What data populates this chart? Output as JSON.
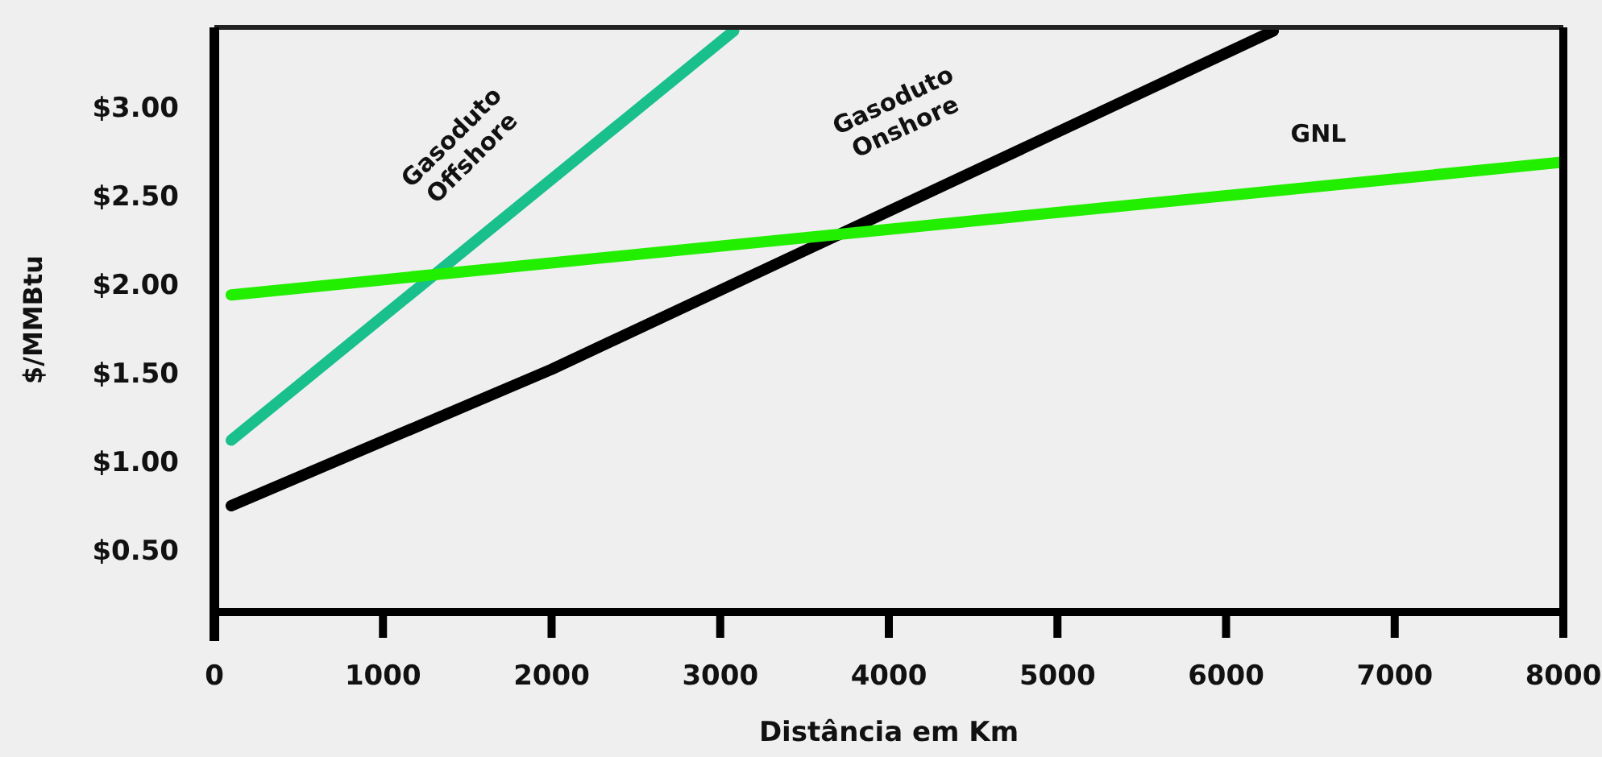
{
  "chart_data": {
    "type": "line",
    "xlabel": "Distância em Km",
    "ylabel": "$/MMBtu",
    "xlim": [
      0,
      8000
    ],
    "xticks": [
      0,
      1000,
      2000,
      3000,
      4000,
      5000,
      6000,
      7000,
      8000
    ],
    "ylim": [
      0.15,
      3.45
    ],
    "yticks": [
      {
        "value": 0.5,
        "label": "$0.50"
      },
      {
        "value": 1,
        "label": "$1.00"
      },
      {
        "value": 1.5,
        "label": "$1.50"
      },
      {
        "value": 2,
        "label": "$2.00"
      },
      {
        "value": 2.5,
        "label": "$2.50"
      },
      {
        "value": 3,
        "label": "$3.00"
      }
    ],
    "grid": false,
    "line_style": "solid",
    "marker": "none",
    "series": [
      {
        "name": "Gasoduto Offshore",
        "color": "#19c08c",
        "x": [
          100,
          3080
        ],
        "values": [
          1.12,
          3.43
        ]
      },
      {
        "name": "Gasoduto Onshore",
        "color": "#000000",
        "x": [
          100,
          2000,
          6280
        ],
        "values": [
          0.75,
          1.52,
          3.43
        ]
      },
      {
        "name": "GNL",
        "color": "#22ee00",
        "x": [
          100,
          8000
        ],
        "values": [
          1.94,
          2.69
        ]
      }
    ]
  }
}
